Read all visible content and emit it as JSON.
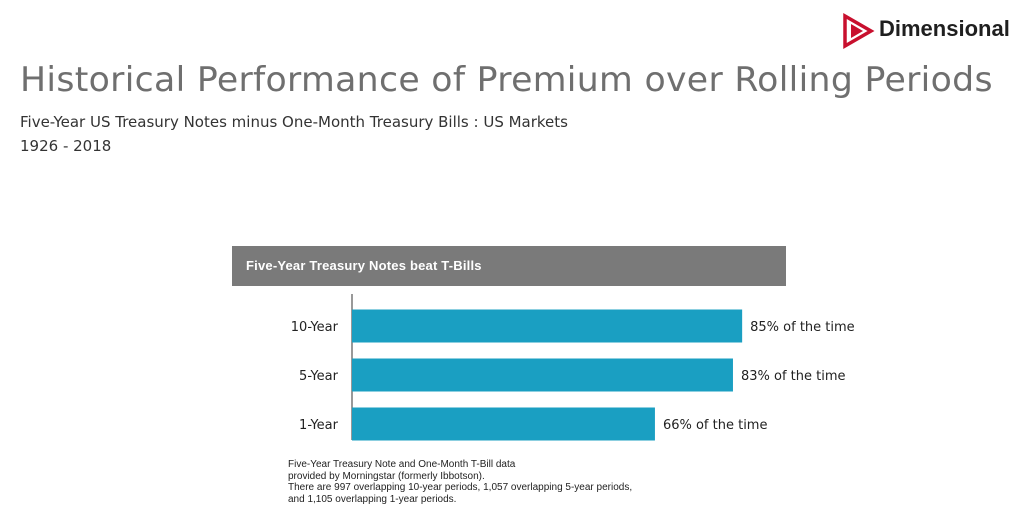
{
  "brand": {
    "name": "Dimensional",
    "accent": "#c8102e"
  },
  "header": {
    "title": "Historical Performance of Premium over Rolling Periods",
    "subtitle": "Five-Year US Treasury Notes minus One-Month Treasury Bills : US Markets",
    "years": "1926 - 2018"
  },
  "chart_data": {
    "type": "bar",
    "orientation": "horizontal",
    "title": "Five-Year Treasury Notes beat T-Bills",
    "categories": [
      "10-Year",
      "5-Year",
      "1-Year"
    ],
    "values": [
      85,
      83,
      66
    ],
    "labels": [
      "85% of the time",
      "83% of the time",
      "66% of the time"
    ],
    "unit": "%",
    "xlim": [
      0,
      100
    ],
    "bar_color": "#1a9fc2",
    "header_color": "#7a7a7a",
    "grid": false,
    "legend": "none"
  },
  "footnote": {
    "lines": [
      "Five-Year Treasury Note and One-Month T-Bill data",
      "provided by Morningstar (formerly Ibbotson).",
      "There are 997 overlapping 10-year periods, 1,057 overlapping 5-year periods,",
      "and 1,105 overlapping 1-year periods."
    ]
  }
}
